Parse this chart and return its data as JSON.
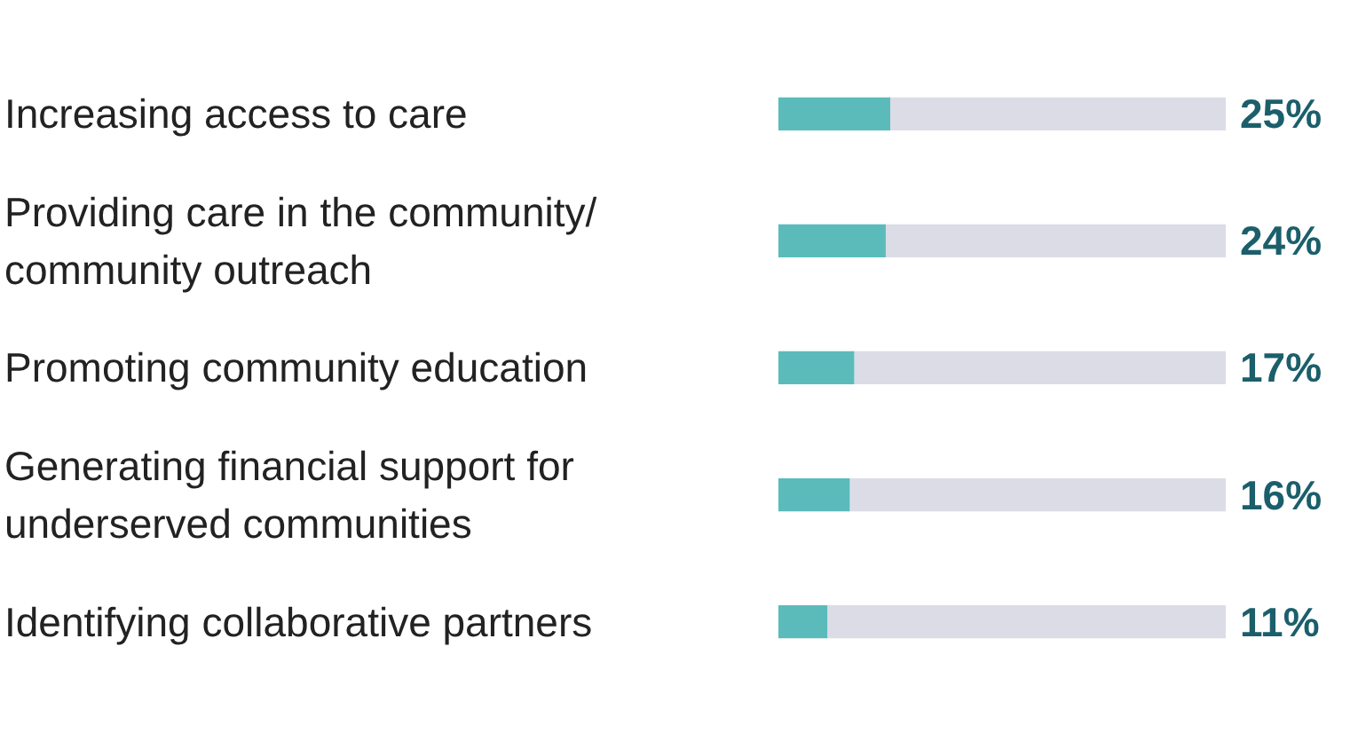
{
  "chart_data": {
    "type": "bar",
    "orientation": "horizontal",
    "stacked": true,
    "tick_labels": false,
    "grid": false,
    "categories": [
      "Increasing access to care",
      "Providing care in the community/\ncommunity outreach",
      "Promoting community education",
      "Generating financial support for\nunderserved communities",
      "Identifying collaborative partners"
    ],
    "xlim": [
      0,
      100
    ],
    "series": [
      {
        "color": "#5bbbbb",
        "values": [
          25,
          24,
          17,
          16,
          11
        ],
        "value_labels": [
          "25%",
          "24%",
          "17%",
          "16%",
          "11%"
        ]
      },
      {
        "color": "#dcdce6",
        "values": [
          75,
          76,
          83,
          84,
          89
        ]
      }
    ]
  }
}
